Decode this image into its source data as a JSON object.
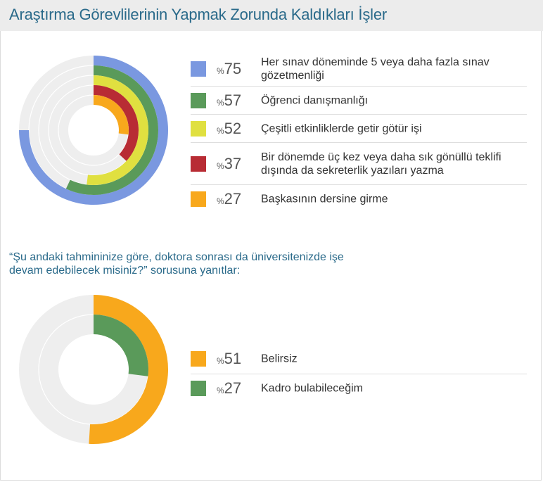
{
  "title": "Araştırma Görevlilerinin Yapmak Zorunda Kaldıkları İşler",
  "percent_sign": "%",
  "question": "“Şu andaki tahmininize göre, doktora sonrası da üniversitenizde işe devam edebilecek misiniz?” sorusuna yanıtlar:",
  "track_color": "#eeeeee",
  "chart_data": [
    {
      "type": "pie",
      "variant": "concentric-radial-rings",
      "value_max": 100,
      "series": [
        {
          "name": "Her sınav döneminde 5 veya daha fazla sınav gözetmenliği",
          "value": 75,
          "color": "#7a98e0"
        },
        {
          "name": "Öğrenci danışmanlığı",
          "value": 57,
          "color": "#5a9a5a"
        },
        {
          "name": "Çeşitli etkinliklerde getir götür işi",
          "value": 52,
          "color": "#e0e040"
        },
        {
          "name": "Bir dönemde üç kez veya daha sık gönüllü teklifi dışında da sekreterlik yazıları yazma",
          "value": 37,
          "color": "#b82c34"
        },
        {
          "name": "Başkasının dersine girme",
          "value": 27,
          "color": "#f8a81c"
        }
      ]
    },
    {
      "type": "pie",
      "variant": "concentric-radial-rings",
      "value_max": 100,
      "series": [
        {
          "name": "Belirsiz",
          "value": 51,
          "color": "#f8a81c"
        },
        {
          "name": "Kadro bulabileceğim",
          "value": 27,
          "color": "#5a9a5a"
        }
      ]
    }
  ]
}
